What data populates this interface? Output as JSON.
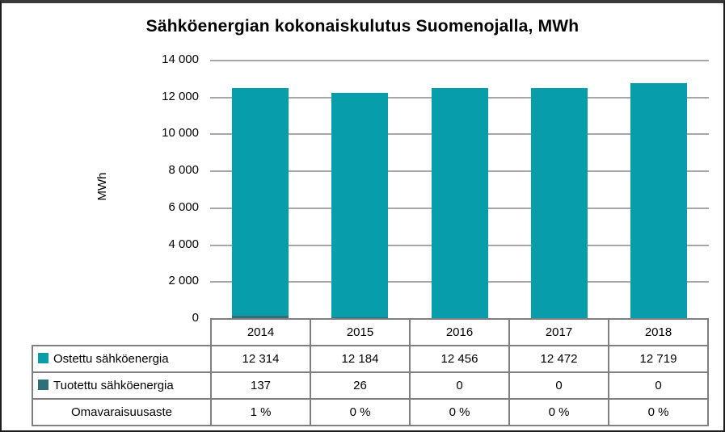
{
  "chart_data": {
    "type": "bar",
    "stacked": true,
    "title": "Sähköenergian kokonaiskulutus Suomenojalla, MWh",
    "xlabel": "",
    "ylabel": "MWh",
    "categories": [
      "2014",
      "2015",
      "2016",
      "2017",
      "2018"
    ],
    "series": [
      {
        "name": "Ostettu sähköenergia",
        "values": [
          12314,
          12184,
          12456,
          12472,
          12719
        ],
        "color": "#089daa",
        "stack_position": "top"
      },
      {
        "name": "Tuotettu sähköenergia",
        "values": [
          137,
          26,
          0,
          0,
          0
        ],
        "color": "#2e6f7a",
        "stack_position": "bottom"
      }
    ],
    "ylim": [
      0,
      14000
    ],
    "ytick_step": 2000,
    "ytick_labels": [
      "0",
      "2 000",
      "4 000",
      "6 000",
      "8 000",
      "10 000",
      "12 000",
      "14 000"
    ],
    "grid": "horizontal",
    "gridline_color": "#a6a6a6",
    "table_border_color": "#7f7f7f",
    "legend_position": "table-left",
    "table": {
      "rows": [
        {
          "label": "Ostettu sähköenergia",
          "swatch": "#089daa",
          "values": [
            "12 314",
            "12 184",
            "12 456",
            "12 472",
            "12 719"
          ]
        },
        {
          "label": "Tuotettu sähköenergia",
          "swatch": "#2e6f7a",
          "values": [
            "137",
            "26",
            "0",
            "0",
            "0"
          ]
        },
        {
          "label": "Omavaraisuusaste",
          "swatch": null,
          "values": [
            "1 %",
            "0 %",
            "0 %",
            "0 %",
            "0 %"
          ]
        }
      ]
    }
  }
}
